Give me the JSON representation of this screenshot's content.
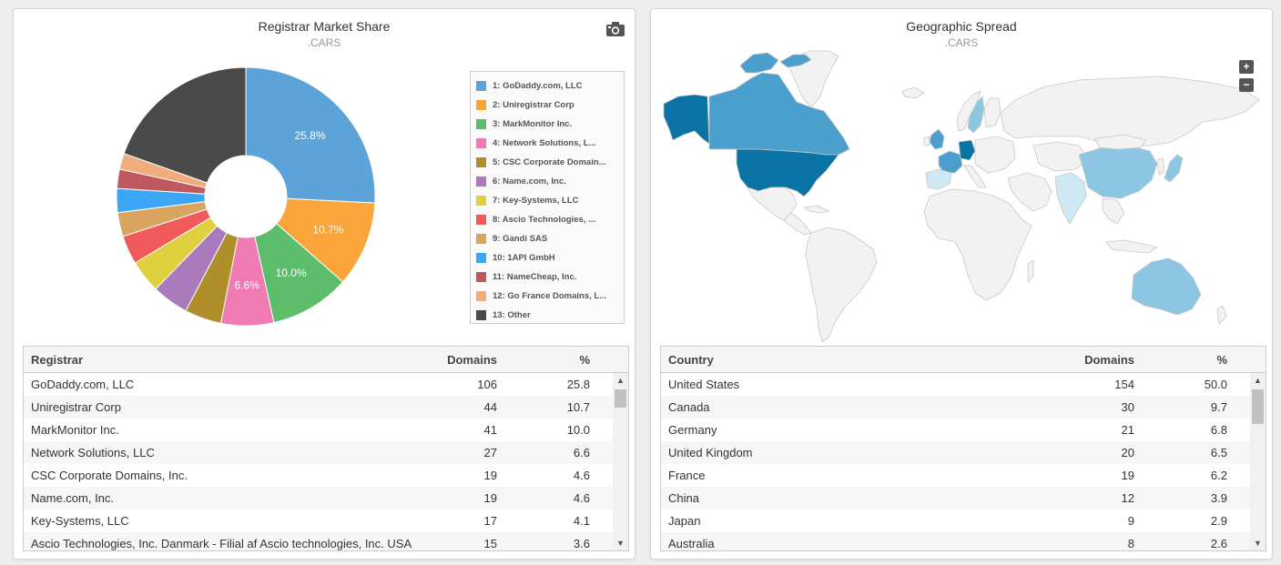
{
  "left_panel": {
    "title": "Registrar Market Share",
    "subtitle": ".CARS",
    "camera_icon": "camera-icon",
    "table": {
      "headers": [
        "Registrar",
        "Domains",
        "%"
      ],
      "rows": [
        [
          "GoDaddy.com, LLC",
          "106",
          "25.8"
        ],
        [
          "Uniregistrar Corp",
          "44",
          "10.7"
        ],
        [
          "MarkMonitor Inc.",
          "41",
          "10.0"
        ],
        [
          "Network Solutions, LLC",
          "27",
          "6.6"
        ],
        [
          "CSC Corporate Domains, Inc.",
          "19",
          "4.6"
        ],
        [
          "Name.com, Inc.",
          "19",
          "4.6"
        ],
        [
          "Key-Systems, LLC",
          "17",
          "4.1"
        ],
        [
          "Ascio Technologies, Inc. Danmark - Filial af Ascio technologies, Inc. USA",
          "15",
          "3.6"
        ]
      ]
    }
  },
  "right_panel": {
    "title": "Geographic Spread",
    "subtitle": ".CARS",
    "zoom_in": "+",
    "zoom_out": "−",
    "table": {
      "headers": [
        "Country",
        "Domains",
        "%"
      ],
      "rows": [
        [
          "United States",
          "154",
          "50.0"
        ],
        [
          "Canada",
          "30",
          "9.7"
        ],
        [
          "Germany",
          "21",
          "6.8"
        ],
        [
          "United Kingdom",
          "20",
          "6.5"
        ],
        [
          "France",
          "19",
          "6.2"
        ],
        [
          "China",
          "12",
          "3.9"
        ],
        [
          "Japan",
          "9",
          "2.9"
        ],
        [
          "Australia",
          "8",
          "2.6"
        ]
      ]
    }
  },
  "chart_data": [
    {
      "type": "pie",
      "variant": "donut",
      "title": "Registrar Market Share",
      "subtitle": ".CARS",
      "legend_position": "right",
      "slices": [
        {
          "label": "1: GoDaddy.com, LLC",
          "value": 25.8,
          "color": "#5ba3d9",
          "data_label": "25.8%"
        },
        {
          "label": "2: Uniregistrar Corp",
          "value": 10.7,
          "color": "#f9a53a",
          "data_label": "10.7%"
        },
        {
          "label": "3: MarkMonitor Inc.",
          "value": 10.0,
          "color": "#5cbd6a",
          "data_label": "10.0%"
        },
        {
          "label": "4: Network Solutions, L...",
          "value": 6.6,
          "color": "#f07bb3",
          "data_label": "6.6%"
        },
        {
          "label": "5: CSC Corporate Domain...",
          "value": 4.6,
          "color": "#b08f2a",
          "data_label": ""
        },
        {
          "label": "6: Name.com, Inc.",
          "value": 4.6,
          "color": "#a97bbd",
          "data_label": ""
        },
        {
          "label": "7: Key-Systems, LLC",
          "value": 4.1,
          "color": "#dfd03f",
          "data_label": ""
        },
        {
          "label": "8: Ascio Technologies, ...",
          "value": 3.6,
          "color": "#f15a5a",
          "data_label": ""
        },
        {
          "label": "9: Gandi SAS",
          "value": 3.0,
          "color": "#d9a45e",
          "data_label": ""
        },
        {
          "label": "10: 1API GmbH",
          "value": 3.0,
          "color": "#3aa6f5",
          "data_label": ""
        },
        {
          "label": "11: NameCheap, Inc.",
          "value": 2.4,
          "color": "#c0585f",
          "data_label": ""
        },
        {
          "label": "12: Go France Domains, L...",
          "value": 2.0,
          "color": "#f1ac7d",
          "data_label": ""
        },
        {
          "label": "13: Other",
          "value": 19.6,
          "color": "#4a4a4a",
          "data_label": ""
        }
      ]
    },
    {
      "type": "choropleth",
      "title": "Geographic Spread",
      "subtitle": ".CARS",
      "values": [
        {
          "country": "United States",
          "domains": 154,
          "percent": 50.0
        },
        {
          "country": "Canada",
          "domains": 30,
          "percent": 9.7
        },
        {
          "country": "Germany",
          "domains": 21,
          "percent": 6.8
        },
        {
          "country": "United Kingdom",
          "domains": 20,
          "percent": 6.5
        },
        {
          "country": "France",
          "domains": 19,
          "percent": 6.2
        },
        {
          "country": "China",
          "domains": 12,
          "percent": 3.9
        },
        {
          "country": "Japan",
          "domains": 9,
          "percent": 2.9
        },
        {
          "country": "Australia",
          "domains": 8,
          "percent": 2.6
        }
      ],
      "colors": {
        "base": "#f2f2f2",
        "border": "#c8c8c8",
        "high": "#0a73a6",
        "mid": "#4a9fcc",
        "low": "#8dc6e3",
        "lowest": "#cfe8f6"
      }
    }
  ]
}
